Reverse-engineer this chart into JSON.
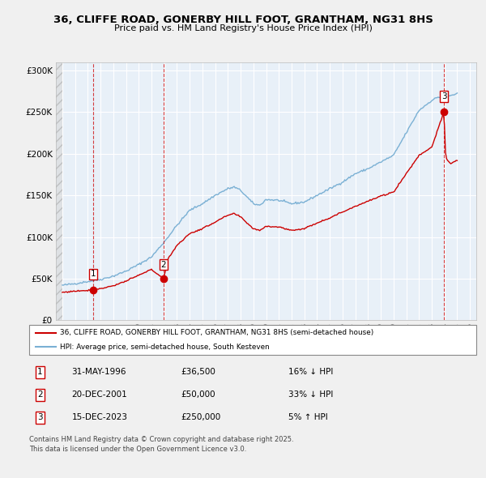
{
  "title": "36, CLIFFE ROAD, GONERBY HILL FOOT, GRANTHAM, NG31 8HS",
  "subtitle": "Price paid vs. HM Land Registry's House Price Index (HPI)",
  "transactions": [
    {
      "num": 1,
      "date": "31-MAY-1996",
      "price": 36500,
      "x_year": 1996.41
    },
    {
      "num": 2,
      "date": "20-DEC-2001",
      "price": 50000,
      "x_year": 2001.96
    },
    {
      "num": 3,
      "date": "15-DEC-2023",
      "price": 250000,
      "x_year": 2023.96
    }
  ],
  "legend_line1": "36, CLIFFE ROAD, GONERBY HILL FOOT, GRANTHAM, NG31 8HS (semi-detached house)",
  "legend_line2": "HPI: Average price, semi-detached house, South Kesteven",
  "table_rows": [
    [
      1,
      "31-MAY-1996",
      "£36,500",
      "16% ↓ HPI"
    ],
    [
      2,
      "20-DEC-2001",
      "£50,000",
      "33% ↓ HPI"
    ],
    [
      3,
      "15-DEC-2023",
      "£250,000",
      "5% ↑ HPI"
    ]
  ],
  "footnote1": "Contains HM Land Registry data © Crown copyright and database right 2025.",
  "footnote2": "This data is licensed under the Open Government Licence v3.0.",
  "ylim": [
    0,
    310000
  ],
  "xlim_start": 1993.5,
  "xlim_end": 2026.5,
  "price_color": "#cc0000",
  "hpi_color": "#7ab0d4",
  "bg_color": "#e8f0f8",
  "grid_color": "#ffffff",
  "hatch_end": 1994.0,
  "hpi_anchors": [
    [
      1994.0,
      42000
    ],
    [
      1995.0,
      44000
    ],
    [
      1996.0,
      46500
    ],
    [
      1997.0,
      49000
    ],
    [
      1998.0,
      53000
    ],
    [
      1999.0,
      59000
    ],
    [
      2000.0,
      67000
    ],
    [
      2001.0,
      76000
    ],
    [
      2002.0,
      94000
    ],
    [
      2003.0,
      114000
    ],
    [
      2004.0,
      132000
    ],
    [
      2005.0,
      140000
    ],
    [
      2006.0,
      150000
    ],
    [
      2007.0,
      158000
    ],
    [
      2007.5,
      160000
    ],
    [
      2008.0,
      156000
    ],
    [
      2009.0,
      140000
    ],
    [
      2009.5,
      138000
    ],
    [
      2010.0,
      145000
    ],
    [
      2011.0,
      144000
    ],
    [
      2012.0,
      140000
    ],
    [
      2013.0,
      142000
    ],
    [
      2014.0,
      150000
    ],
    [
      2015.0,
      158000
    ],
    [
      2016.0,
      166000
    ],
    [
      2017.0,
      176000
    ],
    [
      2018.0,
      182000
    ],
    [
      2019.0,
      190000
    ],
    [
      2020.0,
      198000
    ],
    [
      2021.0,
      225000
    ],
    [
      2022.0,
      252000
    ],
    [
      2023.0,
      264000
    ],
    [
      2023.5,
      268000
    ],
    [
      2024.0,
      268000
    ],
    [
      2024.5,
      270000
    ],
    [
      2025.0,
      272000
    ]
  ],
  "price_anchors": [
    [
      1994.0,
      33500
    ],
    [
      1995.0,
      35000
    ],
    [
      1996.0,
      36000
    ],
    [
      1996.41,
      36500
    ],
    [
      1997.0,
      38000
    ],
    [
      1998.0,
      41500
    ],
    [
      1999.0,
      47000
    ],
    [
      2000.0,
      54000
    ],
    [
      2001.0,
      61000
    ],
    [
      2001.96,
      50000
    ],
    [
      2002.3,
      74000
    ],
    [
      2003.0,
      90000
    ],
    [
      2004.0,
      104000
    ],
    [
      2005.0,
      110000
    ],
    [
      2006.0,
      118000
    ],
    [
      2007.0,
      126000
    ],
    [
      2007.5,
      128000
    ],
    [
      2008.0,
      124000
    ],
    [
      2009.0,
      110000
    ],
    [
      2009.5,
      108000
    ],
    [
      2010.0,
      113000
    ],
    [
      2011.0,
      112000
    ],
    [
      2012.0,
      108000
    ],
    [
      2013.0,
      110000
    ],
    [
      2014.0,
      117000
    ],
    [
      2015.0,
      123000
    ],
    [
      2016.0,
      130000
    ],
    [
      2017.0,
      137000
    ],
    [
      2018.0,
      143000
    ],
    [
      2019.0,
      149000
    ],
    [
      2020.0,
      154000
    ],
    [
      2021.0,
      176000
    ],
    [
      2022.0,
      198000
    ],
    [
      2023.0,
      208000
    ],
    [
      2023.96,
      250000
    ],
    [
      2024.1,
      195000
    ],
    [
      2024.5,
      188000
    ],
    [
      2025.0,
      192000
    ]
  ]
}
